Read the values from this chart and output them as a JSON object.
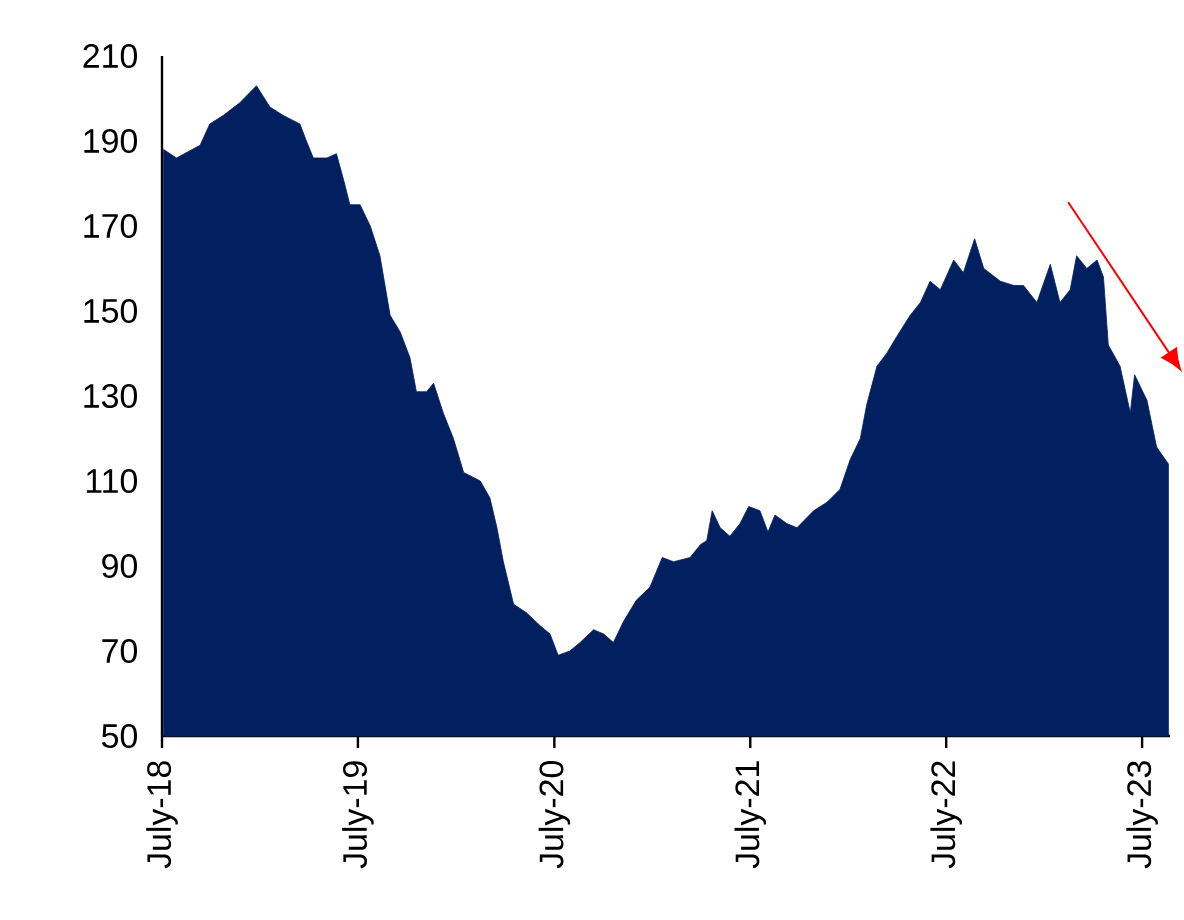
{
  "chart_data": {
    "type": "area",
    "color": "#022060",
    "x": [
      "2018-07-04",
      "2018-07-28",
      "2018-09-10",
      "2018-09-28",
      "2018-10-23",
      "2018-11-23",
      "2018-12-24",
      "2019-01-18",
      "2019-02-12",
      "2019-03-15",
      "2019-03-27",
      "2019-04-09",
      "2019-05-04",
      "2019-05-22",
      "2019-06-04",
      "2019-06-16",
      "2019-07-05",
      "2019-07-24",
      "2019-08-11",
      "2019-08-30",
      "2019-09-18",
      "2019-10-06",
      "2019-10-18",
      "2019-11-06",
      "2019-11-19",
      "2019-12-07",
      "2019-12-26",
      "2020-01-14",
      "2020-02-14",
      "2020-03-03",
      "2020-03-16",
      "2020-03-28",
      "2020-04-16",
      "2020-05-10",
      "2020-06-04",
      "2020-06-23",
      "2020-07-08",
      "2020-07-30",
      "2020-08-18",
      "2020-09-12",
      "2020-10-01",
      "2020-10-19",
      "2020-11-07",
      "2020-12-01",
      "2020-12-26",
      "2021-01-18",
      "2021-02-08",
      "2021-03-11",
      "2021-03-30",
      "2021-04-11",
      "2021-04-21",
      "2021-05-06",
      "2021-05-24",
      "2021-06-12",
      "2021-06-28",
      "2021-07-19",
      "2021-08-03",
      "2021-08-16",
      "2021-09-07",
      "2021-09-26",
      "2021-10-27",
      "2021-11-21",
      "2021-12-15",
      "2022-01-03",
      "2022-01-22",
      "2022-02-03",
      "2022-02-22",
      "2022-03-12",
      "2022-03-31",
      "2022-04-25",
      "2022-05-14",
      "2022-06-01",
      "2022-06-20",
      "2022-07-15",
      "2022-08-02",
      "2022-08-23",
      "2022-09-09",
      "2022-10-10",
      "2022-11-04",
      "2022-11-22",
      "2022-12-17",
      "2023-01-11",
      "2023-01-29",
      "2023-02-17",
      "2023-03-01",
      "2023-03-20",
      "2023-04-08",
      "2023-04-20",
      "2023-04-29",
      "2023-05-21",
      "2023-06-09",
      "2023-06-17",
      "2023-07-10",
      "2023-07-28",
      "2023-08-19"
    ],
    "values": [
      188,
      186,
      189,
      194,
      196,
      199,
      203,
      198,
      196,
      194,
      190,
      186,
      186,
      187,
      181,
      175,
      175,
      170,
      163,
      149,
      145,
      139,
      131,
      131,
      133,
      126,
      120,
      112,
      110,
      106,
      99,
      91,
      81,
      79,
      76,
      74,
      69,
      70,
      72,
      75,
      74,
      72,
      77,
      82,
      85,
      92,
      91,
      92,
      95,
      96,
      103,
      99,
      97,
      100,
      104,
      103,
      98,
      102,
      100,
      99,
      103,
      105,
      108,
      115,
      120,
      128,
      137,
      140,
      144,
      149,
      152,
      157,
      155,
      162,
      159,
      167,
      160,
      157,
      156,
      156,
      152,
      161,
      152,
      155,
      163,
      160,
      162,
      158,
      142,
      137,
      126,
      135,
      129,
      118,
      114
    ],
    "xlim": [
      "2018-07-01",
      "2023-08-22"
    ],
    "ylim": [
      50,
      210
    ],
    "xticks": [
      {
        "value": "2018-07-01",
        "label": "July-18"
      },
      {
        "value": "2019-07-01",
        "label": "July-19"
      },
      {
        "value": "2020-07-01",
        "label": "July-20"
      },
      {
        "value": "2021-07-01",
        "label": "July-21"
      },
      {
        "value": "2022-07-01",
        "label": "July-22"
      },
      {
        "value": "2023-07-01",
        "label": "July-23"
      }
    ],
    "yticks": [
      50,
      70,
      90,
      110,
      130,
      150,
      170,
      190,
      210
    ]
  }
}
